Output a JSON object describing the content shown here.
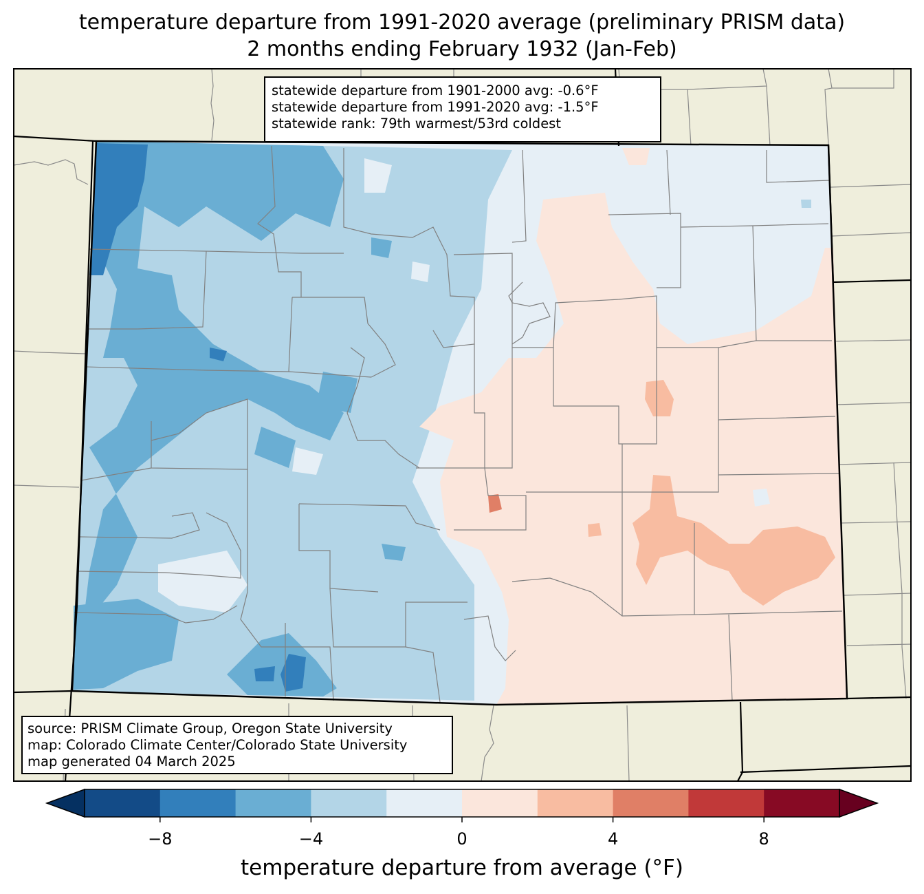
{
  "header": {
    "title_line1": "temperature departure from 1991-2020 average (preliminary PRISM data)",
    "title_line2": "2 months ending February 1932 (Jan-Feb)"
  },
  "stats": [
    "statewide departure from 1901-2000 avg: -0.6°F",
    "statewide departure from 1991-2020 avg: -1.5°F",
    "statewide rank: 79th warmest/53rd coldest"
  ],
  "source": [
    "source: PRISM Climate Group, Oregon State University",
    "map: Colorado Climate Center/Colorado State University",
    "map generated 04 March 2025"
  ],
  "colorbar": {
    "label": "temperature departure from average (°F)",
    "ticks": [
      "−8",
      "−4",
      "0",
      "4",
      "8"
    ],
    "tick_values": [
      -8,
      -4,
      0,
      4,
      8
    ],
    "range": [
      -10,
      10
    ],
    "bin_edges": [
      -10,
      -8,
      -6,
      -4,
      -2,
      0,
      2,
      4,
      6,
      8,
      10
    ],
    "colors": [
      "#134b87",
      "#327fbb",
      "#6aaed3",
      "#b3d5e7",
      "#e6eff6",
      "#fbe6dc",
      "#f8bca1",
      "#e07f66",
      "#c13939",
      "#870a24"
    ],
    "under_color": "#053061",
    "over_color": "#67001f",
    "extend": "both"
  },
  "map_colors": {
    "land_outside": "#efeedc",
    "state_border": "#000000",
    "county_border": "#808080"
  }
}
